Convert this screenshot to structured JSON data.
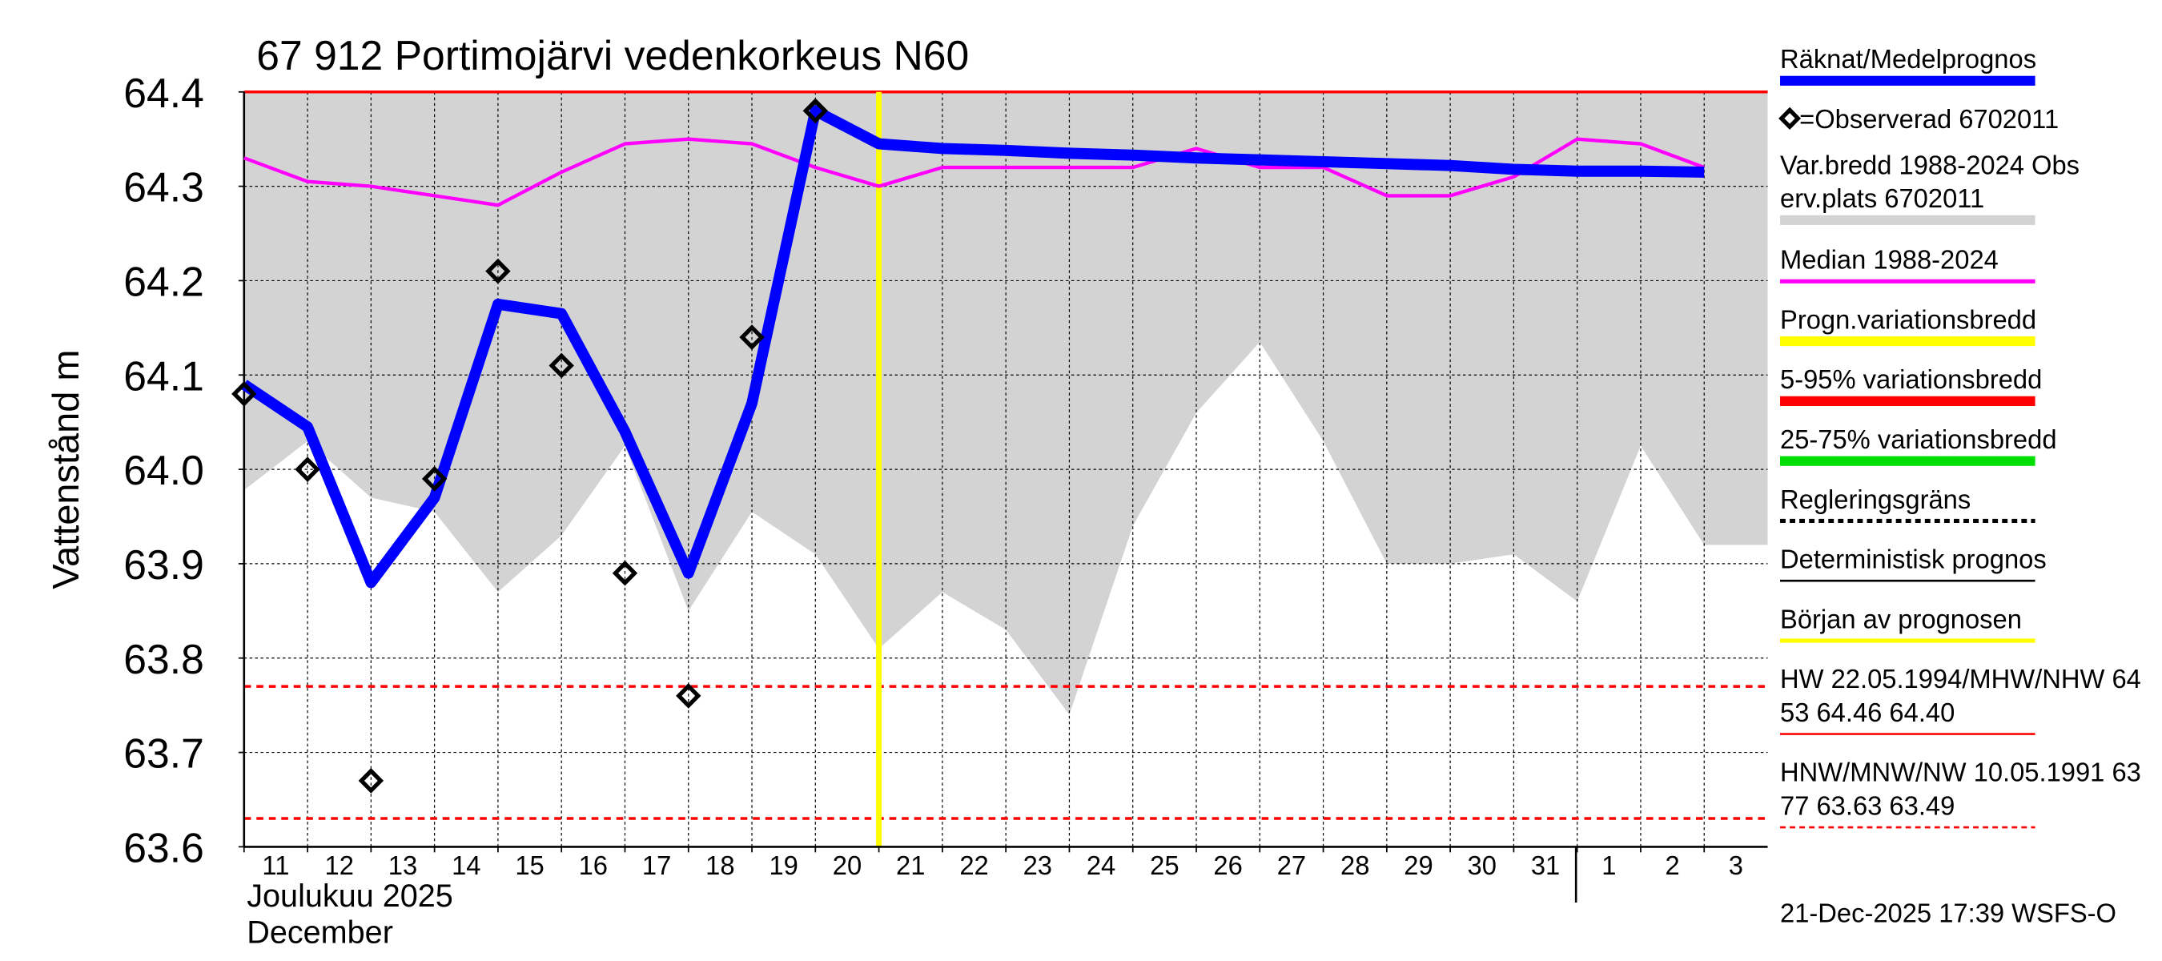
{
  "chart_data": {
    "type": "line",
    "title": "67 912 Portimojärvi vedenkorkeus N60",
    "y_label": "Vattenstånd m",
    "x_label_lines": [
      "Joulukuu  2025",
      "December"
    ],
    "footer": "21-Dec-2025 17:39 WSFS-O",
    "categories": [
      "11",
      "12",
      "13",
      "14",
      "15",
      "16",
      "17",
      "18",
      "19",
      "20",
      "21",
      "22",
      "23",
      "24",
      "25",
      "26",
      "27",
      "28",
      "29",
      "30",
      "31",
      "1",
      "2",
      "3"
    ],
    "ylim": [
      63.6,
      64.4
    ],
    "yticks": [
      63.6,
      63.7,
      63.8,
      63.9,
      {
        "value": 64,
        "label": "64.0"
      },
      64.1,
      64.2,
      64.3,
      64.4
    ],
    "grid": true,
    "forecast_start": "21",
    "forecast_start_color": "#ffff00",
    "series": [
      {
        "kind": "band",
        "color": "#d3d3d3",
        "values": [
          63.978,
          64.03,
          63.97,
          63.955,
          63.87,
          63.93,
          64.025,
          63.85,
          63.955,
          63.91,
          63.81,
          63.87,
          63.83,
          63.74,
          63.94,
          64.06,
          64.135,
          64.03,
          63.9,
          63.9,
          63.91,
          63.86,
          64.025,
          63.92
        ]
      },
      {
        "kind": "line",
        "color": "#ff00ff",
        "width": 2.5,
        "values": [
          64.33,
          64.305,
          64.3,
          64.29,
          64.28,
          64.315,
          64.345,
          64.35,
          64.345,
          64.32,
          64.3,
          64.32,
          64.32,
          64.32,
          64.32,
          64.34,
          64.32,
          64.32,
          64.29,
          64.29,
          64.31,
          64.35,
          64.345,
          64.32
        ]
      },
      {
        "kind": "line",
        "color": "#0000ff",
        "width": 8,
        "values": [
          64.09,
          64.045,
          63.88,
          63.97,
          64.175,
          64.165,
          64.04,
          63.89,
          64.07,
          64.38,
          64.345,
          64.34,
          64.338,
          64.335,
          64.333,
          64.33,
          64.328,
          64.326,
          64.324,
          64.322,
          64.318,
          64.316,
          64.316,
          64.315
        ]
      },
      {
        "kind": "markers",
        "color": "#000000",
        "values": [
          64.08,
          64.0,
          63.67,
          63.99,
          64.21,
          64.11,
          63.89,
          63.76,
          64.14,
          64.38,
          null,
          null,
          null,
          null,
          null,
          null,
          null,
          null,
          null,
          null,
          null,
          null,
          null,
          null
        ]
      }
    ],
    "hlines": [
      {
        "value": 64.4,
        "color": "#ff0000",
        "style": "solid"
      },
      {
        "value": 63.77,
        "color": "#ff0000",
        "style": "dashed"
      },
      {
        "value": 63.63,
        "color": "#ff0000",
        "style": "dashed"
      }
    ],
    "legend": [
      {
        "lines": [
          "Räknat/Medelprognos"
        ],
        "color": "#0000ff",
        "style": "thick"
      },
      {
        "lines": [
          "=Observerad 6702011"
        ],
        "color": "#000000",
        "style": "diamond"
      },
      {
        "lines": [
          "Var.bredd 1988-2024   Obs",
          "erv.plats 6702011"
        ],
        "color": "#d3d3d3",
        "style": "thick"
      },
      {
        "lines": [
          "Median 1988-2024"
        ],
        "color": "#ff00ff",
        "style": "medium"
      },
      {
        "lines": [
          "Progn.variationsbredd"
        ],
        "color": "#ffff00",
        "style": "thick"
      },
      {
        "lines": [
          "5-95% variationsbredd"
        ],
        "color": "#ff0000",
        "style": "thick"
      },
      {
        "lines": [
          "25-75% variationsbredd"
        ],
        "color": "#00dd00",
        "style": "thick"
      },
      {
        "lines": [
          "Regleringsgräns"
        ],
        "color": "#000000",
        "style": "dashed-thick"
      },
      {
        "lines": [
          "Deterministisk prognos"
        ],
        "color": "#000000",
        "style": "thin"
      },
      {
        "lines": [
          "Början av prognosen"
        ],
        "color": "#ffff00",
        "style": "medium"
      },
      {
        "lines": [
          "HW 22.05.1994/MHW/NHW 64",
          "53 64.46 64.40"
        ],
        "color": "#ff0000",
        "style": "thin"
      },
      {
        "lines": [
          "HNW/MNW/NW 10.05.1991 63",
          "77 63.63 63.49"
        ],
        "color": "#ff0000",
        "style": "dashed"
      }
    ]
  }
}
